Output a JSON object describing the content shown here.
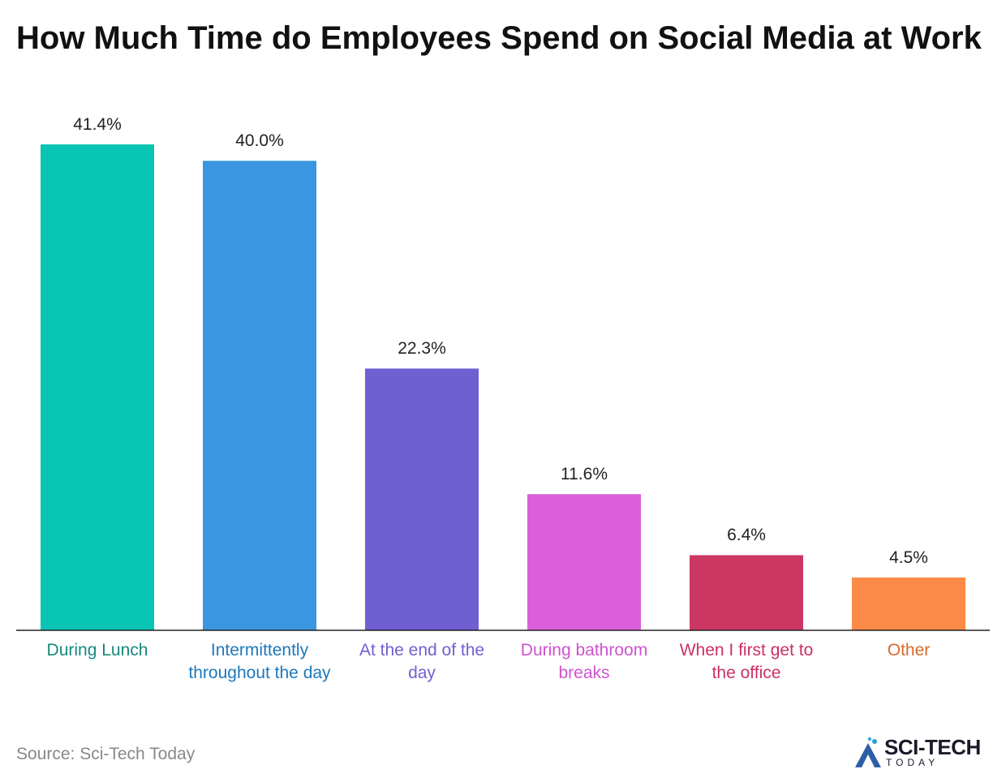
{
  "chart_data": {
    "type": "bar",
    "title": "How Much Time do Employees Spend on Social Media at Work",
    "categories": [
      "During Lunch",
      "Intermittently throughout the day",
      "At the end of the day",
      "During bathroom breaks",
      "When I first get to the office",
      "Other"
    ],
    "values": [
      41.4,
      40.0,
      22.3,
      11.6,
      6.4,
      4.5
    ],
    "value_labels": [
      "41.4%",
      "40.0%",
      "22.3%",
      "11.6%",
      "6.4%",
      "4.5%"
    ],
    "colors": [
      "#08c4b2",
      "#3a96e0",
      "#6f5fd3",
      "#db5fdb",
      "#cc3663",
      "#fa8a46"
    ],
    "label_colors": [
      "#16897c",
      "#1c78bd",
      "#7060d0",
      "#cf52cf",
      "#cc3060",
      "#d86a2c"
    ],
    "source": "Source: Sci-Tech Today",
    "logo": {
      "name": "SCI-TECH",
      "tagline": "TODAY"
    }
  }
}
